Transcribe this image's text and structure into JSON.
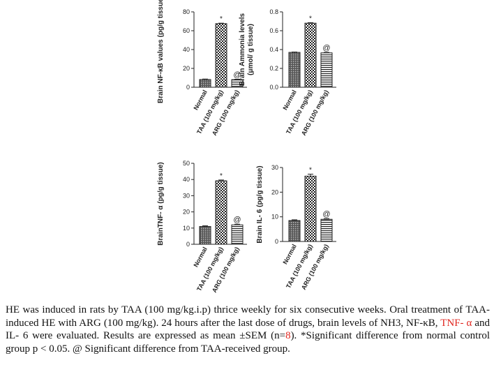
{
  "chart_data": [
    {
      "type": "bar",
      "categories": [
        "Normal",
        "TAA (100 mg/kg)",
        "ARG (100 mg/kg)"
      ],
      "values": [
        8.2,
        67.5,
        8.1
      ],
      "errors": [
        0.5,
        0.5,
        0.4
      ],
      "markers": [
        "",
        "*",
        "@"
      ],
      "ylabel": "Brain NF-κB values (pg/g tissue)",
      "ylabel_lines": [
        "Brain NF-κB values (pg/g tissue)"
      ],
      "ylim": [
        0,
        80
      ],
      "yticks": [
        0,
        20,
        40,
        60,
        80
      ]
    },
    {
      "type": "bar",
      "categories": [
        "Normal",
        "TAA (100 mg/kg)",
        "ARG (100 mg/kg)"
      ],
      "values": [
        0.37,
        0.68,
        0.365
      ],
      "errors": [
        0.004,
        0.005,
        0.005
      ],
      "markers": [
        "",
        "*",
        "@"
      ],
      "ylabel": "Brain Ammonia levels (μmol/ g tissue)",
      "ylabel_lines": [
        "Brain Ammonia levels",
        "(μmol/ g tissue)"
      ],
      "ylim": [
        0,
        0.8
      ],
      "yticks": [
        0.0,
        0.2,
        0.4,
        0.6,
        0.8
      ]
    },
    {
      "type": "bar",
      "categories": [
        "Normal",
        "TAA (100 mg/kg)",
        "ARG (100 mg/kg)"
      ],
      "values": [
        11.0,
        39.2,
        12.0
      ],
      "errors": [
        0.4,
        0.5,
        0.4
      ],
      "markers": [
        "",
        "*",
        "@"
      ],
      "ylabel": "BrainTNF- α (pg/g tissue)",
      "ylabel_lines": [
        "BrainTNF- α (pg/g tissue)"
      ],
      "ylim": [
        0,
        50
      ],
      "yticks": [
        0,
        10,
        20,
        30,
        40,
        50
      ]
    },
    {
      "type": "bar",
      "categories": [
        "Normal",
        "TAA (100 mg/kg)",
        "ARG (100 mg/kg)"
      ],
      "values": [
        8.5,
        26.5,
        9.0
      ],
      "errors": [
        0.3,
        0.8,
        0.3
      ],
      "markers": [
        "",
        "*",
        "@"
      ],
      "ylabel": "Brain IL- 6 (pg/g tissue)",
      "ylabel_lines": [
        "Brain IL- 6 (pg/g tissue)"
      ],
      "ylim": [
        0,
        30
      ],
      "yticks": [
        0,
        10,
        20,
        30
      ]
    }
  ],
  "caption": {
    "part1": "HE was induced in rats by TAA (100 mg/kg.i.p) thrice weekly for six consecutive weeks. Oral treatment of TAA- induced HE with ARG (100 mg/kg). 24 hours after the last dose of drugs, brain levels of NH3, NF-κB, ",
    "highlight": "TNF- α",
    "part2": " and IL- 6 were evaluated. Results are expressed as mean ±SEM (n=",
    "n_value": "8",
    "part3": "). *Significant difference from normal control group p < 0.05. @ Significant difference from TAA-received group."
  }
}
